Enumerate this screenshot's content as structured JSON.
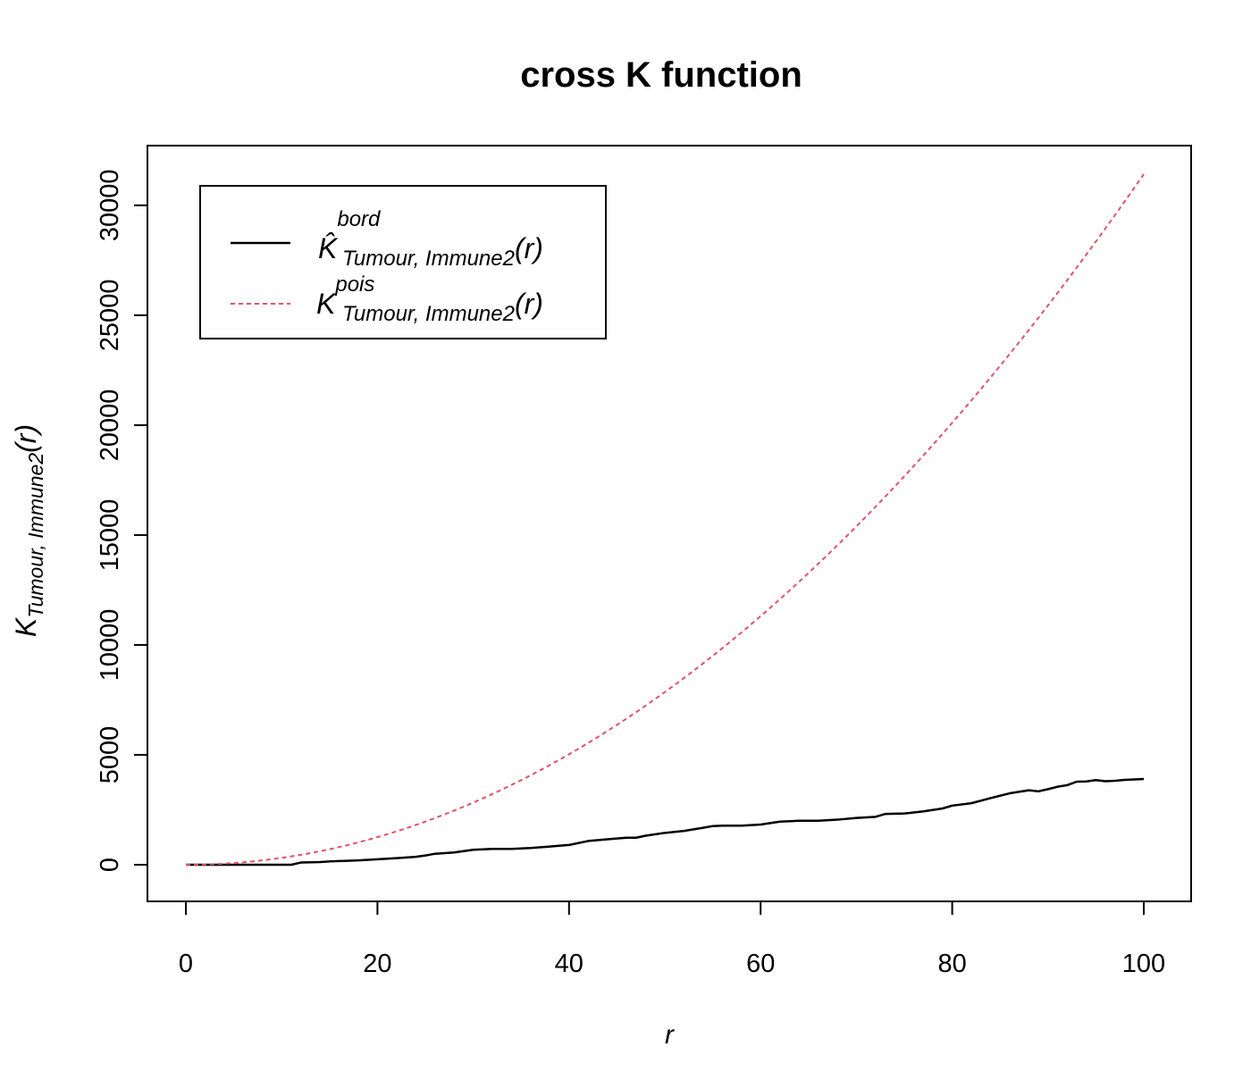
{
  "chart_data": {
    "type": "line",
    "title": "cross K function",
    "xlabel": "r",
    "ylabel": {
      "main": "K",
      "subscript": "Tumour, Immune2",
      "argument": "(r)"
    },
    "xlim": [
      0,
      100
    ],
    "ylim": [
      0,
      31416
    ],
    "x_ticks": [
      "0",
      "20",
      "40",
      "60",
      "80",
      "100"
    ],
    "y_ticks": [
      "0",
      "5000",
      "10000",
      "15000",
      "20000",
      "25000",
      "30000"
    ],
    "grid": false,
    "legend_position": "top-left",
    "series": [
      {
        "legend": {
          "main": "K̂",
          "superscript": "bord",
          "subscript": "Tumour, Immune2",
          "argument": "(r)"
        },
        "color": "#000000",
        "style": "solid",
        "x": [
          0,
          4,
          8,
          11,
          12,
          14,
          15,
          18,
          20,
          22,
          24,
          25,
          26,
          28,
          30,
          32,
          34,
          36,
          38,
          40,
          42,
          44,
          46,
          47,
          48,
          50,
          52,
          54,
          55,
          56,
          58,
          60,
          62,
          64,
          66,
          68,
          70,
          72,
          73,
          75,
          77,
          79,
          80,
          82,
          84,
          86,
          88,
          89,
          90,
          91,
          92,
          93,
          94,
          95,
          96,
          97,
          98,
          99,
          100
        ],
        "y": [
          0,
          0,
          0,
          0,
          100,
          120,
          150,
          200,
          250,
          300,
          360,
          420,
          500,
          560,
          680,
          720,
          720,
          760,
          830,
          900,
          1080,
          1160,
          1230,
          1230,
          1320,
          1450,
          1540,
          1680,
          1760,
          1780,
          1780,
          1830,
          1960,
          2000,
          2000,
          2050,
          2130,
          2180,
          2310,
          2330,
          2430,
          2560,
          2690,
          2800,
          3030,
          3250,
          3390,
          3340,
          3440,
          3550,
          3620,
          3780,
          3790,
          3850,
          3800,
          3820,
          3860,
          3880,
          3900
        ]
      },
      {
        "legend": {
          "main": "K",
          "superscript": "pois",
          "subscript": "Tumour, Immune2",
          "argument": "(r)"
        },
        "color": "#DF536B",
        "style": "dashed",
        "function": "pi * r^2"
      }
    ]
  }
}
